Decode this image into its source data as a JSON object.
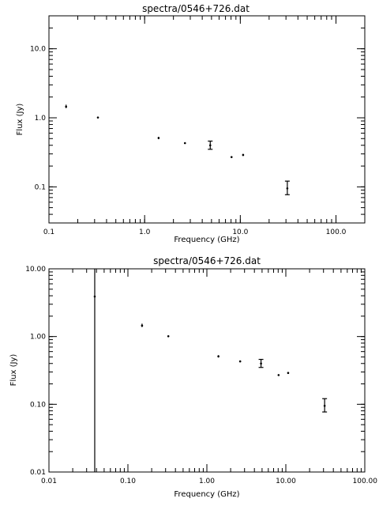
{
  "chart_data": [
    {
      "type": "scatter",
      "title": "spectra/0546+726.dat",
      "xlabel": "Frequency (GHz)",
      "ylabel": "Flux (Jy)",
      "xscale": "log",
      "yscale": "log",
      "xlim": [
        0.1,
        200
      ],
      "ylim": [
        0.03,
        30
      ],
      "xticks": [
        {
          "value": 0.1,
          "label": "0.1"
        },
        {
          "value": 1,
          "label": "1.0"
        },
        {
          "value": 10,
          "label": "10.0"
        },
        {
          "value": 100,
          "label": "100.0"
        }
      ],
      "yticks": [
        {
          "value": 0.1,
          "label": "0.1"
        },
        {
          "value": 1,
          "label": "1.0"
        },
        {
          "value": 10,
          "label": "10.0"
        }
      ],
      "grid": false,
      "series": [
        {
          "points": [
            {
              "x": 0.151,
              "y": 1.45,
              "yerr_low": 1.38,
              "yerr_high": 1.55
            },
            {
              "x": 0.325,
              "y": 1.01
            },
            {
              "x": 1.4,
              "y": 0.51,
              "yerr_low": 0.49,
              "yerr_high": 0.53
            },
            {
              "x": 2.64,
              "y": 0.43
            },
            {
              "x": 4.85,
              "y": 0.4,
              "yerr_low": 0.35,
              "yerr_high": 0.46
            },
            {
              "x": 8.1,
              "y": 0.27
            },
            {
              "x": 10.7,
              "y": 0.29,
              "yerr_low": 0.28,
              "yerr_high": 0.3
            },
            {
              "x": 31,
              "y": 0.095,
              "yerr_low": 0.077,
              "yerr_high": 0.121
            }
          ]
        }
      ]
    },
    {
      "type": "scatter",
      "title": "spectra/0546+726.dat",
      "xlabel": "Frequency (GHz)",
      "ylabel": "Flux (Jy)",
      "xscale": "log",
      "yscale": "log",
      "xlim": [
        0.01,
        100
      ],
      "ylim": [
        0.01,
        10
      ],
      "xticks": [
        {
          "value": 0.01,
          "label": "0.01"
        },
        {
          "value": 0.1,
          "label": "0.10"
        },
        {
          "value": 1,
          "label": "1.00"
        },
        {
          "value": 10,
          "label": "10.00"
        },
        {
          "value": 100,
          "label": "100.00"
        }
      ],
      "yticks": [
        {
          "value": 0.01,
          "label": "0.01"
        },
        {
          "value": 0.1,
          "label": "0.10"
        },
        {
          "value": 1,
          "label": "1.00"
        },
        {
          "value": 10,
          "label": "10.00"
        }
      ],
      "grid": false,
      "series": [
        {
          "points": [
            {
              "x": 0.038,
              "y": 3.9,
              "yerr_low": 0.01,
              "yerr_high": 10
            },
            {
              "x": 0.151,
              "y": 1.45,
              "yerr_low": 1.38,
              "yerr_high": 1.55
            },
            {
              "x": 0.325,
              "y": 1.01
            },
            {
              "x": 1.4,
              "y": 0.51,
              "yerr_low": 0.49,
              "yerr_high": 0.53
            },
            {
              "x": 2.64,
              "y": 0.43
            },
            {
              "x": 4.85,
              "y": 0.4,
              "yerr_low": 0.35,
              "yerr_high": 0.46
            },
            {
              "x": 8.1,
              "y": 0.27
            },
            {
              "x": 10.7,
              "y": 0.29,
              "yerr_low": 0.28,
              "yerr_high": 0.3
            },
            {
              "x": 31,
              "y": 0.095,
              "yerr_low": 0.077,
              "yerr_high": 0.121
            }
          ]
        }
      ]
    }
  ]
}
